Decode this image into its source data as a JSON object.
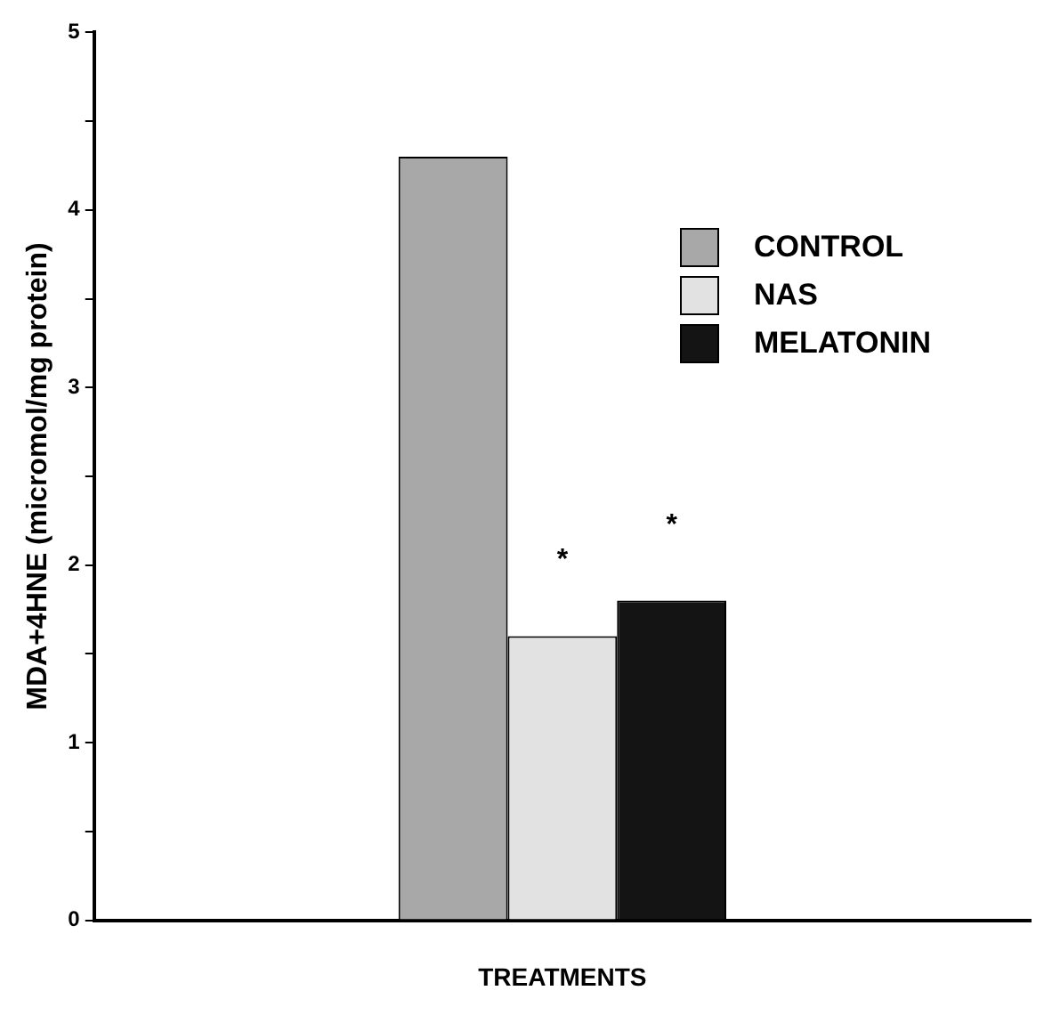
{
  "chart_data": {
    "type": "bar",
    "ylabel": "MDA+4HNE (micromol/mg protein)",
    "xlabel": "TREATMENTS",
    "categories": [
      null
    ],
    "series": [
      {
        "name": "CONTROL",
        "color": "#a8a8a8",
        "values": [
          4.3
        ]
      },
      {
        "name": "NAS",
        "color": "#e2e2e2",
        "values": [
          1.6
        ]
      },
      {
        "name": "MELATONIN",
        "color": "#141414",
        "values": [
          1.8
        ]
      }
    ],
    "ylim": [
      0,
      5
    ],
    "yticks": [
      0,
      {
        "value": 0.5,
        "label": null
      },
      1,
      {
        "value": 1.5,
        "label": null
      },
      2,
      {
        "value": 2.5,
        "label": null
      },
      3,
      {
        "value": 3.5,
        "label": null
      },
      4,
      {
        "value": 4.5,
        "label": null
      },
      5
    ],
    "annotations": [
      {
        "text": "*",
        "y": 1.6
      },
      {
        "text": "*",
        "y": 1.8
      }
    ],
    "legend": "top right",
    "grid": false
  }
}
